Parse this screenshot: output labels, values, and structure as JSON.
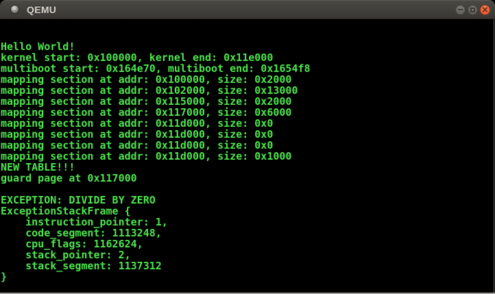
{
  "window": {
    "title": "QEMU",
    "controls": [
      {
        "name": "minimize",
        "icon": "minimize-icon"
      },
      {
        "name": "maximize",
        "icon": "maximize-icon"
      },
      {
        "name": "close",
        "icon": "close-icon"
      }
    ]
  },
  "terminal": {
    "lines": [
      "",
      "",
      "Hello World!",
      "kernel start: 0x100000, kernel end: 0x11e000",
      "multiboot start: 0x164e70, multiboot end: 0x1654f8",
      "mapping section at addr: 0x100000, size: 0x2000",
      "mapping section at addr: 0x102000, size: 0x13000",
      "mapping section at addr: 0x115000, size: 0x2000",
      "mapping section at addr: 0x117000, size: 0x6000",
      "mapping section at addr: 0x11d000, size: 0x0",
      "mapping section at addr: 0x11d000, size: 0x0",
      "mapping section at addr: 0x11d000, size: 0x0",
      "mapping section at addr: 0x11d000, size: 0x1000",
      "NEW TABLE!!!",
      "guard page at 0x117000",
      "",
      "EXCEPTION: DIVIDE BY ZERO",
      "ExceptionStackFrame {",
      "    instruction_pointer: 1,",
      "    code_segment: 1113248,",
      "    cpu_flags: 1162624,",
      "    stack_pointer: 2,",
      "    stack_segment: 1137312",
      "}",
      ""
    ]
  },
  "colors": {
    "terminal_text": "#4de64d",
    "terminal_bg": "#000000",
    "titlebar_bg": "#403f3a",
    "titlebar_text": "#dad6ce",
    "close_button": "#e9633c"
  }
}
